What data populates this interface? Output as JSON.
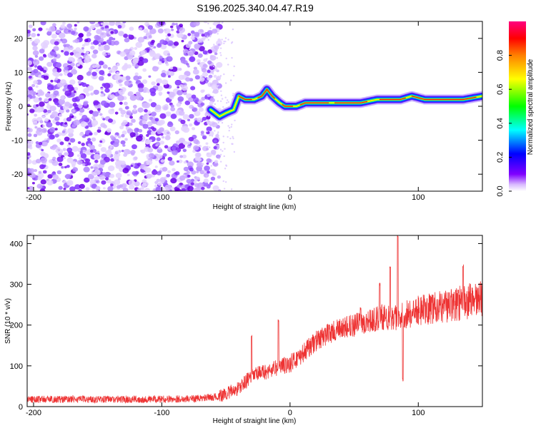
{
  "title": "S196.2025.340.04.47.R19",
  "chart_data": [
    {
      "type": "heatmap",
      "title": "S196.2025.340.04.47.R19",
      "xlabel": "Height of straight line (km)",
      "ylabel": "Frequency (Hz)",
      "xlim": [
        -205,
        150
      ],
      "ylim": [
        -25,
        25
      ],
      "xticks": [
        -200,
        -100,
        0,
        100
      ],
      "yticks": [
        20,
        10,
        0,
        -10,
        -20
      ],
      "colorbar": {
        "label": "Normalized spectral amplitude",
        "range": [
          0,
          1
        ],
        "ticks": [
          0.0,
          0.2,
          0.4,
          0.6,
          0.8
        ],
        "tick_labels": [
          "0.0",
          "0.2",
          "0.4",
          "0.6",
          "0.8"
        ],
        "colormap": [
          "#ffffff",
          "#8000ff",
          "#0000ff",
          "#00ffff",
          "#00ff00",
          "#ffff00",
          "#ff8000",
          "#ff0000",
          "#ff0080"
        ]
      },
      "noise_region": {
        "x_range": [
          -205,
          -55
        ],
        "freq_range": [
          -25,
          25
        ],
        "amplitude_range": [
          0.0,
          0.2
        ]
      },
      "signal_track": [
        {
          "x": -62,
          "f": -1
        },
        {
          "x": -55,
          "f": -3
        },
        {
          "x": -50,
          "f": -2
        },
        {
          "x": -44,
          "f": -1
        },
        {
          "x": -40,
          "f": 3
        },
        {
          "x": -35,
          "f": 2
        },
        {
          "x": -28,
          "f": 2
        },
        {
          "x": -22,
          "f": 3
        },
        {
          "x": -18,
          "f": 5
        },
        {
          "x": -14,
          "f": 3
        },
        {
          "x": -8,
          "f": 1
        },
        {
          "x": -4,
          "f": 0
        },
        {
          "x": 5,
          "f": 0
        },
        {
          "x": 12,
          "f": 1
        },
        {
          "x": 25,
          "f": 1
        },
        {
          "x": 40,
          "f": 1
        },
        {
          "x": 55,
          "f": 1
        },
        {
          "x": 68,
          "f": 2
        },
        {
          "x": 78,
          "f": 2
        },
        {
          "x": 86,
          "f": 2
        },
        {
          "x": 95,
          "f": 3
        },
        {
          "x": 105,
          "f": 2
        },
        {
          "x": 120,
          "f": 2
        },
        {
          "x": 135,
          "f": 2
        },
        {
          "x": 150,
          "f": 3
        }
      ]
    },
    {
      "type": "line",
      "xlabel": "Height of straight line (km)",
      "ylabel": "SNR (10 * v/v)",
      "xlim": [
        -205,
        150
      ],
      "ylim": [
        0,
        420
      ],
      "xticks": [
        -200,
        -100,
        0,
        100
      ],
      "yticks": [
        0,
        100,
        200,
        300,
        400
      ],
      "color": "#ee3333",
      "trend": [
        {
          "x": -205,
          "y": 18
        },
        {
          "x": -150,
          "y": 18
        },
        {
          "x": -100,
          "y": 18
        },
        {
          "x": -70,
          "y": 20
        },
        {
          "x": -55,
          "y": 25
        },
        {
          "x": -40,
          "y": 45
        },
        {
          "x": -30,
          "y": 75
        },
        {
          "x": -15,
          "y": 90
        },
        {
          "x": 0,
          "y": 105
        },
        {
          "x": 10,
          "y": 130
        },
        {
          "x": 20,
          "y": 160
        },
        {
          "x": 30,
          "y": 180
        },
        {
          "x": 45,
          "y": 195
        },
        {
          "x": 60,
          "y": 210
        },
        {
          "x": 75,
          "y": 220
        },
        {
          "x": 85,
          "y": 222
        },
        {
          "x": 100,
          "y": 235
        },
        {
          "x": 120,
          "y": 245
        },
        {
          "x": 135,
          "y": 255
        },
        {
          "x": 150,
          "y": 265
        }
      ],
      "spikes": [
        {
          "x": -30,
          "y": 170
        },
        {
          "x": -18,
          "y": 85
        },
        {
          "x": -9,
          "y": 210
        },
        {
          "x": 55,
          "y": 240
        },
        {
          "x": 70,
          "y": 300
        },
        {
          "x": 78,
          "y": 345
        },
        {
          "x": 84,
          "y": 420
        },
        {
          "x": 88,
          "y": 65
        },
        {
          "x": 135,
          "y": 345
        }
      ]
    }
  ]
}
